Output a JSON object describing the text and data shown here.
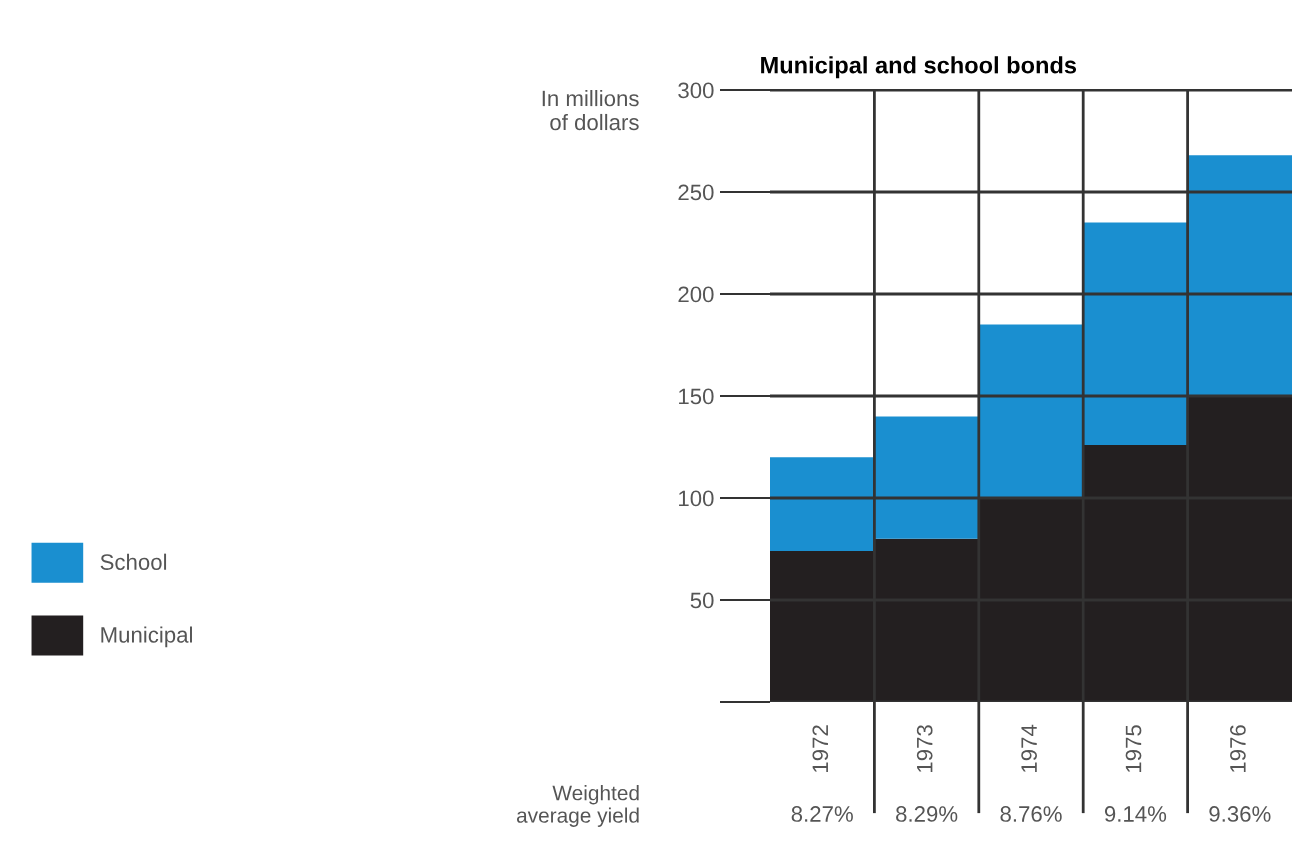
{
  "chart_data": {
    "type": "bar",
    "title": "Municipal and school bonds",
    "ylabel": "In millions\nof dollars",
    "categories": [
      "1972",
      "1973",
      "1974",
      "1975",
      "1976"
    ],
    "stacked": true,
    "series": [
      {
        "name": "Municipal",
        "color": "#231f20",
        "values": [
          74,
          80,
          100,
          126,
          150
        ]
      },
      {
        "name": "School",
        "color": "#1a8fd0",
        "values": [
          46,
          60,
          85,
          109,
          118
        ]
      }
    ],
    "ylim": [
      0,
      300
    ],
    "yticks": [
      {
        "value": 0,
        "label": null
      },
      50,
      100,
      150,
      200,
      250,
      300
    ],
    "grid": true,
    "legend": "left",
    "annotations": [
      "Weighted\naverage yield",
      "8.27%",
      "8.29%",
      "8.76%",
      "9.14%",
      "9.36%"
    ]
  }
}
